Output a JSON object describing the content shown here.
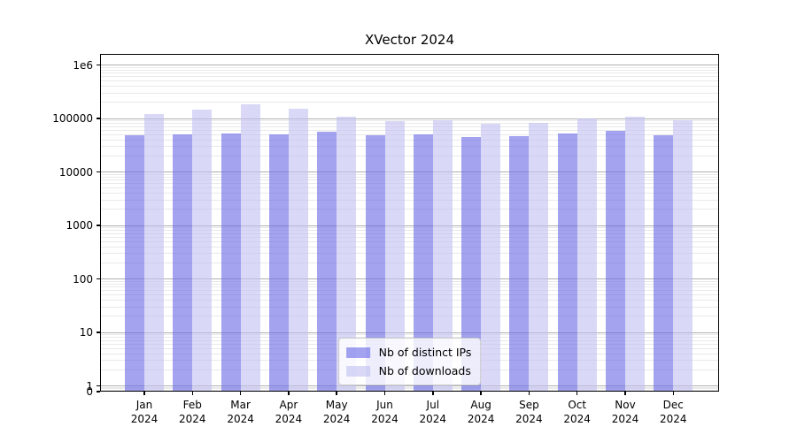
{
  "chart_data": {
    "type": "bar",
    "title": "XVector 2024",
    "year": "2024",
    "categories": [
      "Jan",
      "Feb",
      "Mar",
      "Apr",
      "May",
      "Jun",
      "Jul",
      "Aug",
      "Sep",
      "Oct",
      "Nov",
      "Dec"
    ],
    "series": [
      {
        "name": "Nb of distinct IPs",
        "color": "#a3a3f0",
        "fill_rgba": "rgba(102,102,230,0.6)",
        "values": [
          49000,
          50000,
          53000,
          51000,
          56000,
          48000,
          51000,
          45000,
          47000,
          52000,
          58000,
          48000
        ]
      },
      {
        "name": "Nb of downloads",
        "color": "#d9d9f7",
        "fill_rgba": "rgba(192,192,242,0.6)",
        "values": [
          120000,
          148000,
          185000,
          155000,
          110000,
          88000,
          92000,
          79000,
          84000,
          100000,
          106000,
          93000
        ]
      }
    ],
    "yscale": "symlog",
    "ylim": [
      0,
      1600000
    ],
    "yticks": [
      {
        "label": "1e6",
        "value": 1000000
      },
      {
        "label": "100000",
        "value": 100000
      },
      {
        "label": "10000",
        "value": 10000
      },
      {
        "label": "1000",
        "value": 1000
      },
      {
        "label": "100",
        "value": 100
      },
      {
        "label": "10",
        "value": 10
      },
      {
        "label": "1",
        "value": 1
      },
      {
        "label": "0",
        "value": 0
      }
    ],
    "grid": true,
    "grid_major_color": "#b0b0b0",
    "grid_minor_color": "#e9e9e9",
    "legend_position": "lower center"
  }
}
